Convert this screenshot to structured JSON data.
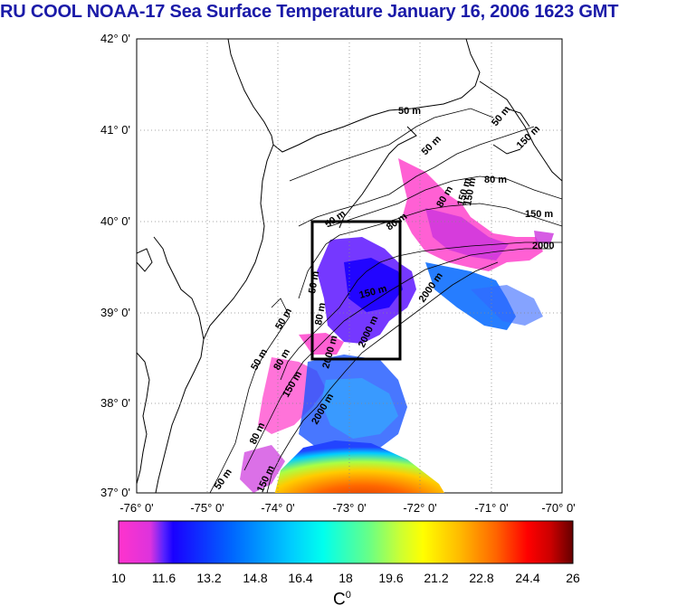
{
  "title": "RU COOL  NOAA-17 Sea Surface Temperature January 16, 2006 1623 GMT",
  "title_color": "#1a1aa8",
  "map": {
    "lat_labels": [
      "42° 0'",
      "41° 0'",
      "40° 0'",
      "39° 0'",
      "38° 0'",
      "37° 0'"
    ],
    "lon_labels": [
      "-76° 0'",
      "-75° 0'",
      "-74° 0'",
      "-73° 0'",
      "-72° 0'",
      "-71° 0'",
      "-70° 0'"
    ],
    "contour_labels": [
      "50 m",
      "50 m",
      "50 m",
      "80 m",
      "150 m",
      "2000",
      "50 m",
      "80 m",
      "150 m",
      "2000 m",
      "50 m",
      "50 m",
      "80 m",
      "150 m",
      "2000 m",
      "50 m",
      "80 m",
      "150 m",
      "2000 m",
      "50 m",
      "80 m",
      "150 m",
      "2000 m",
      "80 m",
      "150 m",
      "150 m"
    ],
    "box": {
      "lon_min": -73.4,
      "lon_max": -72.4,
      "lat_min": 38.5,
      "lat_max": 40.0
    }
  },
  "colorbar": {
    "ticks": [
      "10",
      "11.6",
      "13.2",
      "14.8",
      "16.4",
      "18",
      "19.6",
      "21.2",
      "22.8",
      "24.4",
      "26"
    ],
    "unit": "C",
    "unit_superscript": "0",
    "colors": [
      "#ff33cc",
      "#cc33dd",
      "#1a00ff",
      "#0055ff",
      "#00aaff",
      "#00eeff",
      "#44ff99",
      "#bbff33",
      "#ffff00",
      "#ffbb00",
      "#ff6600",
      "#ff0000",
      "#cc0000",
      "#770000"
    ]
  }
}
